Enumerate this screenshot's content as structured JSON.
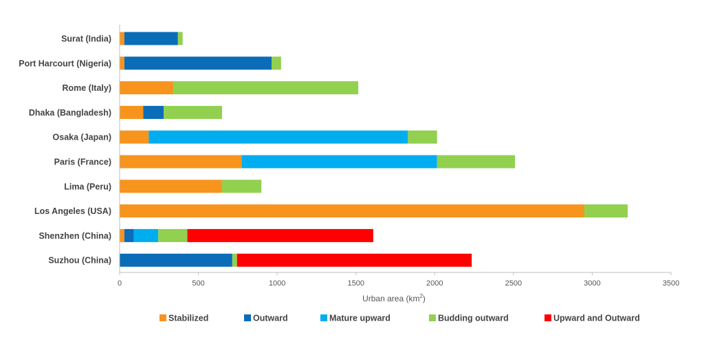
{
  "chart_data": {
    "type": "bar",
    "orientation": "horizontal",
    "stacked": true,
    "categories": [
      "Surat (India)",
      "Port Harcourt (Nigeria)",
      "Rome (Italy)",
      "Dhaka (Bangladesh)",
      "Osaka (Japan)",
      "Paris (France)",
      "Lima (Peru)",
      "Los Angeles (USA)",
      "Shenzhen (China)",
      "Suzhou (China)"
    ],
    "series": [
      {
        "name": "Stabilized",
        "color": "#F7941D",
        "values": [
          30,
          30,
          340,
          150,
          185,
          775,
          650,
          2950,
          30,
          0
        ]
      },
      {
        "name": "Outward",
        "color": "#0B6CB8",
        "values": [
          340,
          935,
          0,
          130,
          0,
          0,
          0,
          0,
          60,
          715
        ]
      },
      {
        "name": "Mature upward",
        "color": "#00AEEF",
        "values": [
          0,
          0,
          0,
          0,
          1645,
          1240,
          0,
          0,
          155,
          0
        ]
      },
      {
        "name": "Budding outward",
        "color": "#92D050",
        "values": [
          30,
          60,
          1175,
          370,
          185,
          495,
          250,
          275,
          185,
          30
        ]
      },
      {
        "name": "Upward and Outward",
        "color": "#FF0000",
        "values": [
          0,
          0,
          0,
          0,
          0,
          0,
          0,
          0,
          1180,
          1490
        ]
      }
    ],
    "xlabel_main": "Urban area (km",
    "xlabel_sup": "2",
    "xlabel_close": ")",
    "xlim": [
      0,
      3500
    ],
    "xticks": [
      0,
      500,
      1000,
      1500,
      2000,
      2500,
      3000,
      3500
    ],
    "grid": false,
    "legend_position": "bottom"
  }
}
